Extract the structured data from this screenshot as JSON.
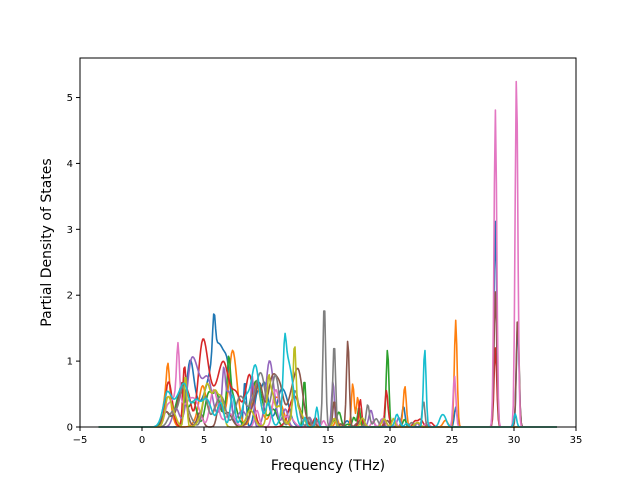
{
  "chart_data": {
    "type": "line",
    "title": "",
    "xlabel": "Frequency (THz)",
    "ylabel": "Partial Density of States",
    "xlim": [
      -5,
      35
    ],
    "ylim": [
      0,
      5.6
    ],
    "x_ticks": [
      -5,
      0,
      5,
      10,
      15,
      20,
      25,
      30,
      35
    ],
    "y_ticks": [
      0,
      1,
      2,
      3,
      4,
      5
    ],
    "grid": false,
    "legend": "none",
    "x_range_of_curves": [
      -3.5,
      33.5
    ],
    "colors": [
      "#1f77b4",
      "#ff7f0e",
      "#2ca02c",
      "#d62728",
      "#9467bd",
      "#8c564b",
      "#e377c2",
      "#7f7f7f",
      "#bcbd22",
      "#17becf"
    ],
    "series": [
      {
        "color": "#1f77b4",
        "peaks": [
          [
            28.5,
            3.12
          ],
          [
            30.3,
            1.55
          ],
          [
            25.3,
            0.3
          ],
          [
            21.1,
            0.22
          ],
          [
            8.3,
            0.7
          ],
          [
            5.8,
            0.6
          ]
        ]
      },
      {
        "color": "#ff7f0e",
        "peaks": [
          [
            25.3,
            1.62
          ],
          [
            21.2,
            0.5
          ],
          [
            17.0,
            0.66
          ],
          [
            17.4,
            0.45
          ],
          [
            2.1,
            0.38
          ]
        ]
      },
      {
        "color": "#2ca02c",
        "peaks": [
          [
            19.8,
            1.18
          ],
          [
            13.1,
            0.72
          ],
          [
            17.5,
            0.3
          ],
          [
            7.0,
            0.55
          ]
        ]
      },
      {
        "color": "#d62728",
        "peaks": [
          [
            28.5,
            1.2
          ],
          [
            19.7,
            0.5
          ],
          [
            17.6,
            0.42
          ],
          [
            3.4,
            0.65
          ]
        ]
      },
      {
        "color": "#9467bd",
        "peaks": [
          [
            15.4,
            0.7
          ],
          [
            8.9,
            0.75
          ],
          [
            6.6,
            0.5
          ]
        ]
      },
      {
        "color": "#8c564b",
        "peaks": [
          [
            16.6,
            1.32
          ],
          [
            28.5,
            2.05
          ],
          [
            30.3,
            1.7
          ],
          [
            15.5,
            0.4
          ]
        ]
      },
      {
        "color": "#e377c2",
        "peaks": [
          [
            28.5,
            4.81
          ],
          [
            30.2,
            5.33
          ],
          [
            25.2,
            0.78
          ],
          [
            2.9,
            0.8
          ]
        ]
      },
      {
        "color": "#7f7f7f",
        "peaks": [
          [
            14.7,
            1.88
          ],
          [
            15.5,
            1.27
          ],
          [
            22.7,
            0.4
          ],
          [
            18.2,
            0.2
          ]
        ]
      },
      {
        "color": "#bcbd22",
        "peaks": [
          [
            12.3,
            1.03
          ],
          [
            3.5,
            0.8
          ],
          [
            10.2,
            0.5
          ]
        ]
      },
      {
        "color": "#17becf",
        "peaks": [
          [
            22.8,
            1.18
          ],
          [
            11.5,
            0.6
          ],
          [
            14.1,
            0.3
          ],
          [
            30.1,
            0.2
          ]
        ]
      }
    ]
  }
}
